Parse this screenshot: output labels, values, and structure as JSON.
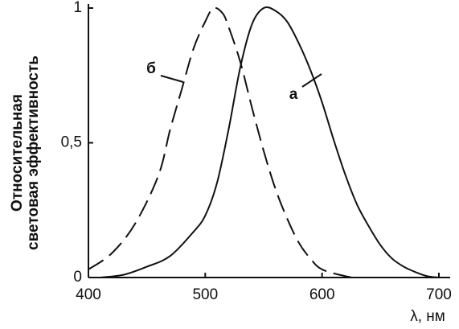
{
  "chart_data": {
    "type": "line",
    "y_label_lines": [
      "Относительная",
      "световая эффективность"
    ],
    "x_label": "λ, нм",
    "xlim": [
      400,
      700
    ],
    "xticks": [
      400,
      500,
      600,
      700
    ],
    "ylim": [
      0,
      1
    ],
    "yticks": [
      0,
      {
        "value": 0.5,
        "label": "0,5"
      },
      1
    ],
    "series": [
      {
        "name": "а",
        "color": "#111111",
        "dashed": false,
        "x": [
          410,
          430,
          450,
          470,
          490,
          500,
          510,
          520,
          530,
          540,
          550,
          560,
          570,
          580,
          590,
          600,
          610,
          620,
          630,
          640,
          650,
          660,
          670,
          680,
          690,
          700
        ],
        "values": [
          0,
          0.01,
          0.04,
          0.08,
          0.17,
          0.23,
          0.35,
          0.55,
          0.78,
          0.94,
          1.0,
          0.99,
          0.95,
          0.87,
          0.77,
          0.65,
          0.51,
          0.38,
          0.27,
          0.19,
          0.12,
          0.07,
          0.04,
          0.02,
          0.005,
          0
        ]
      },
      {
        "name": "б",
        "color": "#111111",
        "dashed": true,
        "x": [
          400,
          420,
          440,
          460,
          470,
          480,
          490,
          500,
          507,
          515,
          520,
          530,
          540,
          550,
          560,
          570,
          580,
          590,
          600,
          620,
          630
        ],
        "values": [
          0.03,
          0.09,
          0.2,
          0.38,
          0.55,
          0.7,
          0.85,
          0.95,
          1.0,
          0.98,
          0.93,
          0.8,
          0.63,
          0.47,
          0.33,
          0.22,
          0.13,
          0.07,
          0.03,
          0.005,
          0
        ]
      }
    ]
  }
}
